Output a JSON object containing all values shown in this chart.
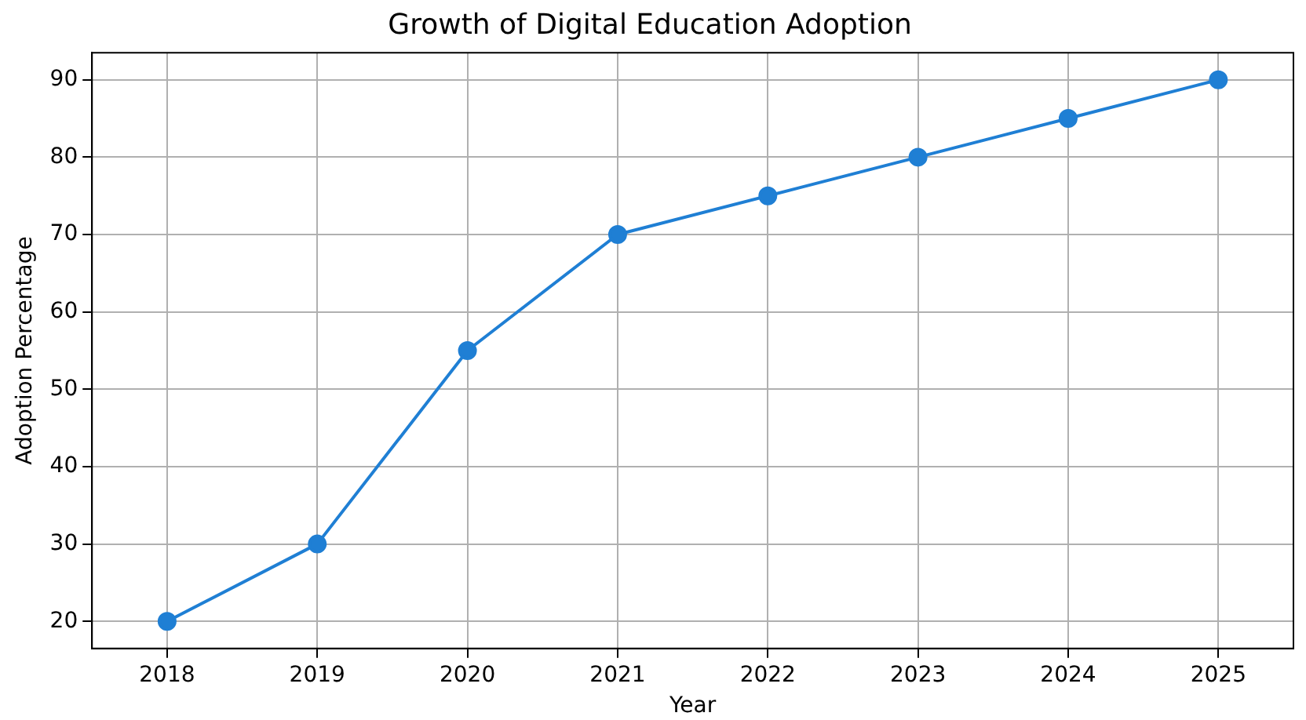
{
  "chart_data": {
    "type": "line",
    "title": "Growth of Digital Education Adoption",
    "xlabel": "Year",
    "ylabel": "Adoption Percentage",
    "categories": [
      "2018",
      "2019",
      "2020",
      "2021",
      "2022",
      "2023",
      "2024",
      "2025"
    ],
    "series": [
      {
        "color": "#1f7fd4",
        "values": [
          20,
          30,
          55,
          70,
          75,
          80,
          85,
          90
        ]
      }
    ],
    "ylim": [
      16.5,
      93.5
    ],
    "yticks": [
      20,
      30,
      40,
      50,
      60,
      70,
      80,
      90
    ],
    "grid": true,
    "marker": "circle",
    "line_style": "solid"
  }
}
